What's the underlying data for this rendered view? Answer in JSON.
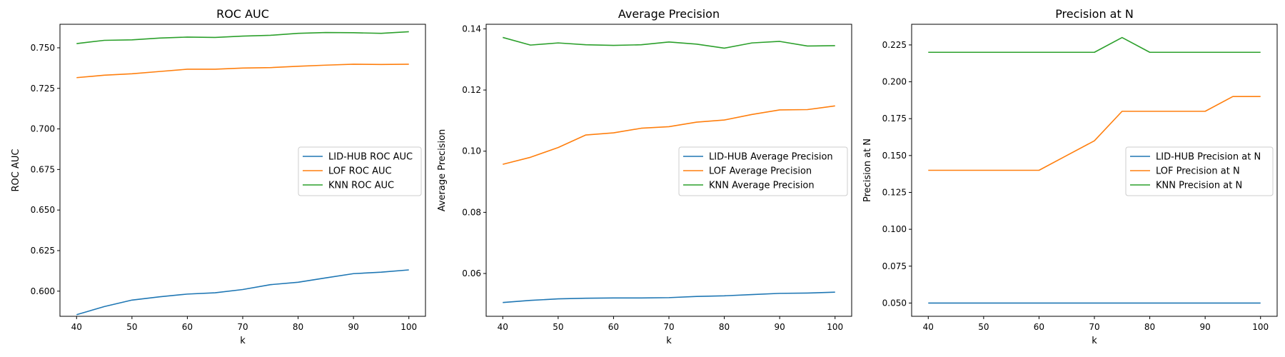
{
  "chart_data": [
    {
      "type": "line",
      "title": "ROC AUC",
      "xlabel": "k",
      "ylabel": "ROC AUC",
      "xlim": [
        37,
        103
      ],
      "ylim": [
        0.5845,
        0.7645
      ],
      "xticks": [
        "40",
        "50",
        "60",
        "70",
        "80",
        "90",
        "100"
      ],
      "yticks": [
        "0.600",
        "0.625",
        "0.650",
        "0.675",
        "0.700",
        "0.725",
        "0.750"
      ],
      "legend": "center-right",
      "grid": false,
      "x": [
        40,
        45,
        50,
        55,
        60,
        65,
        70,
        75,
        80,
        85,
        90,
        95,
        100
      ],
      "series": [
        {
          "name": "LID-HUB ROC AUC",
          "color": "#1f77b4",
          "values": [
            0.5855,
            0.5905,
            0.5945,
            0.5965,
            0.5982,
            0.599,
            0.601,
            0.604,
            0.6055,
            0.6082,
            0.6108,
            0.6117,
            0.6131
          ]
        },
        {
          "name": "LOF ROC AUC",
          "color": "#ff7f0e",
          "values": [
            0.7316,
            0.7331,
            0.734,
            0.7354,
            0.7368,
            0.7368,
            0.7375,
            0.7378,
            0.7386,
            0.7393,
            0.7399,
            0.7397,
            0.7399
          ]
        },
        {
          "name": "KNN ROC AUC",
          "color": "#2ca02c",
          "values": [
            0.7526,
            0.7546,
            0.7549,
            0.756,
            0.7566,
            0.7564,
            0.7572,
            0.7577,
            0.7589,
            0.7594,
            0.7593,
            0.7589,
            0.7599
          ]
        }
      ]
    },
    {
      "type": "line",
      "title": "Average Precision",
      "xlabel": "k",
      "ylabel": "Average Precision",
      "xlim": [
        37,
        103
      ],
      "ylim": [
        0.046,
        0.1415
      ],
      "xticks": [
        "40",
        "50",
        "60",
        "70",
        "80",
        "90",
        "100"
      ],
      "yticks": [
        "0.06",
        "0.08",
        "0.10",
        "0.12",
        "0.14"
      ],
      "legend": "center-right",
      "grid": false,
      "x": [
        40,
        45,
        50,
        55,
        60,
        65,
        70,
        75,
        80,
        85,
        90,
        95,
        100
      ],
      "series": [
        {
          "name": "LID-HUB Average Precision",
          "color": "#1f77b4",
          "values": [
            0.0505,
            0.0512,
            0.0517,
            0.0519,
            0.052,
            0.052,
            0.0521,
            0.0525,
            0.0527,
            0.0531,
            0.0535,
            0.0536,
            0.0539
          ]
        },
        {
          "name": "LOF Average Precision",
          "color": "#ff7f0e",
          "values": [
            0.0957,
            0.098,
            0.1012,
            0.1053,
            0.106,
            0.1075,
            0.108,
            0.1095,
            0.1102,
            0.112,
            0.1135,
            0.1136,
            0.1148
          ]
        },
        {
          "name": "KNN Average Precision",
          "color": "#2ca02c",
          "values": [
            0.1372,
            0.1347,
            0.1354,
            0.1348,
            0.1346,
            0.1348,
            0.1357,
            0.135,
            0.1337,
            0.1354,
            0.1359,
            0.1344,
            0.1345
          ]
        }
      ]
    },
    {
      "type": "line",
      "title": "Precision at N",
      "xlabel": "k",
      "ylabel": "Precision at N",
      "xlim": [
        37,
        103
      ],
      "ylim": [
        0.041,
        0.239
      ],
      "xticks": [
        "40",
        "50",
        "60",
        "70",
        "80",
        "90",
        "100"
      ],
      "yticks": [
        "0.050",
        "0.075",
        "0.100",
        "0.125",
        "0.150",
        "0.175",
        "0.200",
        "0.225"
      ],
      "legend": "center-right",
      "grid": false,
      "x": [
        40,
        45,
        50,
        55,
        60,
        65,
        70,
        75,
        80,
        85,
        90,
        95,
        100
      ],
      "series": [
        {
          "name": "LID-HUB Precision at N",
          "color": "#1f77b4",
          "values": [
            0.05,
            0.05,
            0.05,
            0.05,
            0.05,
            0.05,
            0.05,
            0.05,
            0.05,
            0.05,
            0.05,
            0.05,
            0.05
          ]
        },
        {
          "name": "LOF Precision at N",
          "color": "#ff7f0e",
          "values": [
            0.14,
            0.14,
            0.14,
            0.14,
            0.14,
            0.15,
            0.16,
            0.18,
            0.18,
            0.18,
            0.18,
            0.19,
            0.19
          ]
        },
        {
          "name": "KNN Precision at N",
          "color": "#2ca02c",
          "values": [
            0.22,
            0.22,
            0.22,
            0.22,
            0.22,
            0.22,
            0.22,
            0.23,
            0.22,
            0.22,
            0.22,
            0.22,
            0.22
          ]
        }
      ]
    }
  ]
}
